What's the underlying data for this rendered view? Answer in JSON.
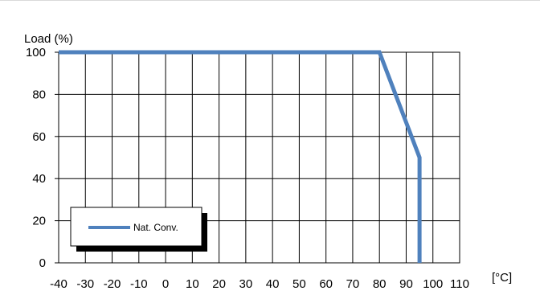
{
  "chart_data": {
    "type": "line",
    "ylabel": "Load (%)",
    "xlabel": "[°C]",
    "xlim": [
      -40,
      110
    ],
    "ylim": [
      0,
      100
    ],
    "x_ticks": [
      -40,
      -30,
      -20,
      -10,
      0,
      10,
      20,
      30,
      40,
      50,
      60,
      70,
      80,
      90,
      100,
      110
    ],
    "y_ticks": [
      0,
      20,
      40,
      60,
      80,
      100
    ],
    "grid": true,
    "legend_placement": "bottom-left",
    "series": [
      {
        "name": "Nat. Conv.",
        "color": "#4f81bd",
        "x": [
          -40,
          80,
          95,
          95
        ],
        "y": [
          100,
          100,
          50,
          0
        ]
      }
    ]
  }
}
